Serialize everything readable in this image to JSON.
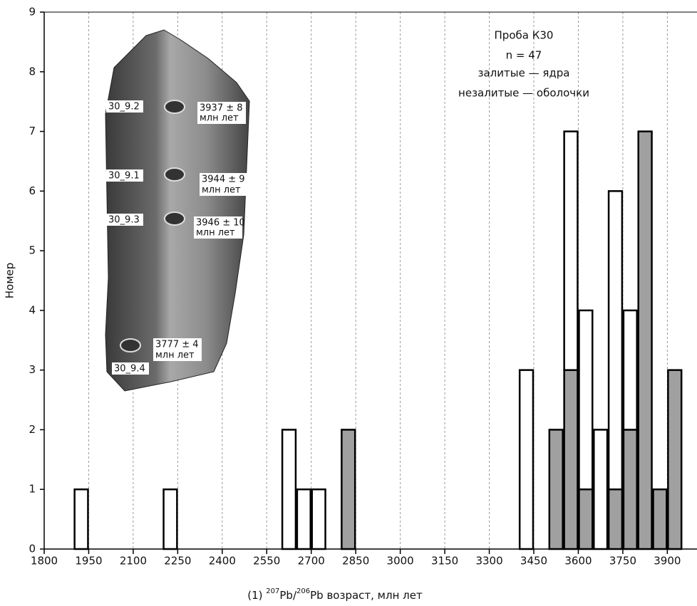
{
  "chart_data": {
    "type": "histogram",
    "xlabel_parts": [
      "(1) ",
      "207",
      "Pb/",
      "206",
      "Pb возраст, млн лет"
    ],
    "ylabel": "Номер",
    "annotations": [
      "Проба К30",
      "n = 47",
      "залитые — ядра",
      "незалитые — оболочки"
    ],
    "inset_labels": [
      "30_9.2",
      "3937 ± 8",
      "млн лет",
      "30_9.1",
      "3944 ± 9",
      "млн лет",
      "30_9.3",
      "3946 ± 10",
      "млн лет",
      "3777 ± 4",
      "млн лет",
      "30_9.4"
    ],
    "bins": [
      1900,
      1950,
      2000,
      2050,
      2100,
      2150,
      2200,
      2250,
      2300,
      2350,
      2400,
      2450,
      2500,
      2550,
      2600,
      2650,
      2700,
      2750,
      2800,
      2850,
      2900,
      2950,
      3000,
      3050,
      3100,
      3150,
      3200,
      3250,
      3300,
      3350,
      3400,
      3450,
      3500,
      3550,
      3600,
      3650,
      3700,
      3750,
      3800,
      3850,
      3900,
      3950,
      4000
    ],
    "series": [
      {
        "name": "залитые — ядра",
        "color": "#a0a0a0",
        "values": [
          0,
          0,
          0,
          0,
          0,
          0,
          0,
          0,
          0,
          0,
          0,
          0,
          0,
          0,
          0,
          0,
          0,
          0,
          2,
          0,
          0,
          0,
          0,
          0,
          0,
          0,
          0,
          0,
          0,
          0,
          0,
          0,
          2,
          3,
          1,
          0,
          1,
          2,
          7,
          1,
          3,
          0
        ]
      },
      {
        "name": "незалитые — оболочки",
        "color": "#ffffff",
        "values": [
          1,
          0,
          0,
          0,
          0,
          0,
          1,
          0,
          0,
          0,
          0,
          0,
          0,
          0,
          2,
          1,
          1,
          0,
          0,
          0,
          0,
          0,
          0,
          0,
          0,
          0,
          0,
          0,
          0,
          0,
          3,
          0,
          0,
          4,
          3,
          2,
          5,
          2,
          0,
          0,
          0,
          0
        ]
      }
    ],
    "xlim": [
      1800,
      4000
    ],
    "xticks": [
      1800,
      1950,
      2100,
      2250,
      2400,
      2550,
      2700,
      2850,
      3000,
      3150,
      3300,
      3450,
      3600,
      3750,
      3900
    ],
    "ylim": [
      0,
      9
    ],
    "yticks": [
      0,
      1,
      2,
      3,
      4,
      5,
      6,
      7,
      8,
      9
    ],
    "grid": true,
    "stacked": true
  }
}
